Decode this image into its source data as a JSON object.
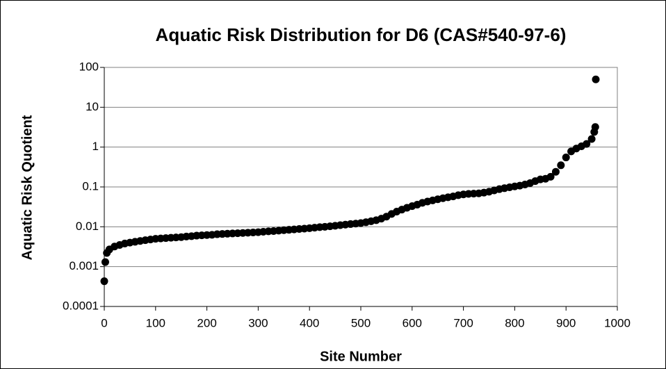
{
  "chart_data": {
    "type": "scatter",
    "title": "Aquatic Risk Distribution for D6 (CAS#540-97-6)",
    "x_label": "Site Number",
    "y_label": "Aquatic Risk Quotient",
    "color": "#000000",
    "y_log_scale": true,
    "grid": true,
    "xlim": [
      0,
      1000
    ],
    "xticks": [
      0,
      100,
      200,
      300,
      400,
      500,
      600,
      700,
      800,
      900,
      1000
    ],
    "ylim": [
      0.0001,
      100
    ],
    "yticks": [
      0.0001,
      0.001,
      0.01,
      0.1,
      1,
      10,
      100
    ],
    "x": [
      0,
      2,
      5,
      10,
      20,
      30,
      40,
      50,
      60,
      70,
      80,
      90,
      100,
      110,
      120,
      130,
      140,
      150,
      160,
      170,
      180,
      190,
      200,
      210,
      220,
      230,
      240,
      250,
      260,
      270,
      280,
      290,
      300,
      310,
      320,
      330,
      340,
      350,
      360,
      370,
      380,
      390,
      400,
      410,
      420,
      430,
      440,
      450,
      460,
      470,
      480,
      490,
      500,
      510,
      520,
      530,
      540,
      550,
      560,
      570,
      580,
      590,
      600,
      610,
      620,
      630,
      640,
      650,
      660,
      670,
      680,
      690,
      700,
      710,
      720,
      730,
      740,
      750,
      760,
      770,
      780,
      790,
      800,
      810,
      820,
      830,
      840,
      850,
      860,
      870,
      880,
      890,
      900,
      910,
      920,
      930,
      940,
      950,
      955,
      957,
      958
    ],
    "values": [
      0.00043,
      0.0013,
      0.0022,
      0.0027,
      0.0032,
      0.0035,
      0.0038,
      0.004,
      0.0042,
      0.0044,
      0.0046,
      0.0048,
      0.005,
      0.0051,
      0.0052,
      0.0053,
      0.0054,
      0.0055,
      0.0057,
      0.0058,
      0.006,
      0.0061,
      0.0062,
      0.0063,
      0.0065,
      0.0066,
      0.0067,
      0.0068,
      0.0069,
      0.007,
      0.0071,
      0.0072,
      0.0073,
      0.0075,
      0.0077,
      0.0078,
      0.008,
      0.0082,
      0.0084,
      0.0086,
      0.0088,
      0.009,
      0.0092,
      0.0095,
      0.0098,
      0.01,
      0.0103,
      0.0106,
      0.011,
      0.0113,
      0.0117,
      0.012,
      0.0124,
      0.013,
      0.0138,
      0.0146,
      0.016,
      0.018,
      0.021,
      0.024,
      0.027,
      0.03,
      0.033,
      0.036,
      0.04,
      0.043,
      0.046,
      0.049,
      0.052,
      0.055,
      0.058,
      0.062,
      0.065,
      0.067,
      0.068,
      0.069,
      0.072,
      0.076,
      0.082,
      0.088,
      0.093,
      0.098,
      0.103,
      0.108,
      0.115,
      0.125,
      0.14,
      0.155,
      0.16,
      0.18,
      0.24,
      0.35,
      0.55,
      0.78,
      0.92,
      1.05,
      1.2,
      1.6,
      2.4,
      3.2,
      50
    ]
  }
}
